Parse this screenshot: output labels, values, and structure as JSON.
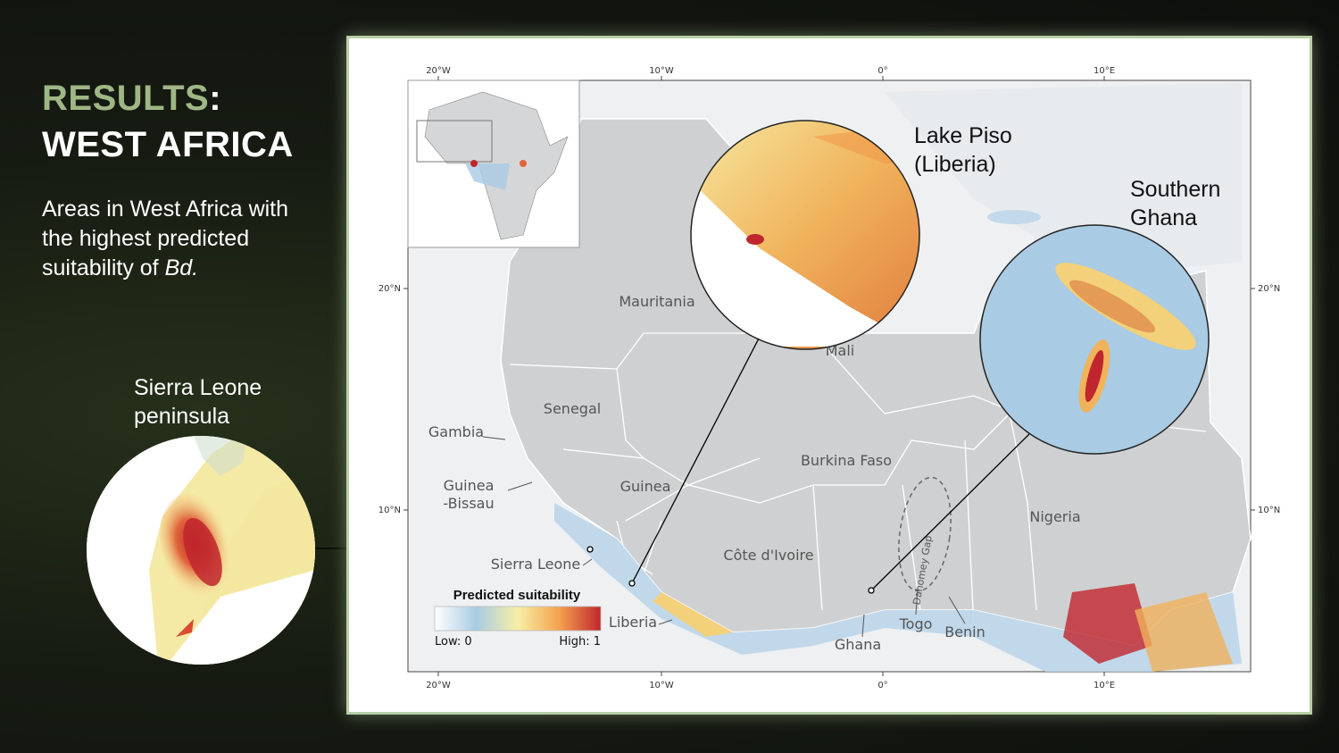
{
  "slide": {
    "title_accent": "RESULTS",
    "title_colon": ":",
    "title_main": "WEST AFRICA",
    "description_prefix": "Areas in West Africa with the highest predicted suitability of ",
    "description_italic": "Bd.",
    "sierra_leone_label_line1": "Sierra Leone",
    "sierra_leone_label_line2": "peninsula"
  },
  "map": {
    "axis": {
      "top": [
        "20°W",
        "10°W",
        "0°",
        "10°E"
      ],
      "bottom": [
        "20°W",
        "10°W",
        "0°",
        "10°E"
      ],
      "left": [
        "20°N",
        "10°N"
      ],
      "right": [
        "20°N",
        "10°N"
      ]
    },
    "countries": {
      "mauritania": "Mauritania",
      "mali": "Mali",
      "senegal": "Senegal",
      "gambia": "Gambia",
      "guinea_bissau_1": "Guinea",
      "guinea_bissau_2": "-Bissau",
      "guinea": "Guinea",
      "burkina_faso": "Burkina Faso",
      "sierra_leone": "Sierra Leone",
      "cote_divoire": "Côte d'Ivoire",
      "nigeria": "Nigeria",
      "liberia": "Liberia",
      "ghana": "Ghana",
      "togo": "Togo",
      "benin": "Benin",
      "dahomey_gap": "Dahomey Gap"
    },
    "callouts": {
      "lake_piso_1": "Lake Piso",
      "lake_piso_2": "(Liberia)",
      "southern_ghana_1": "Southern",
      "southern_ghana_2": "Ghana"
    },
    "legend": {
      "title": "Predicted suitability",
      "low": "Low: 0",
      "high": "High: 1",
      "colors": [
        "#ffffff",
        "#a9cbe3",
        "#f7efa6",
        "#f3a24f",
        "#c0262d"
      ]
    }
  }
}
